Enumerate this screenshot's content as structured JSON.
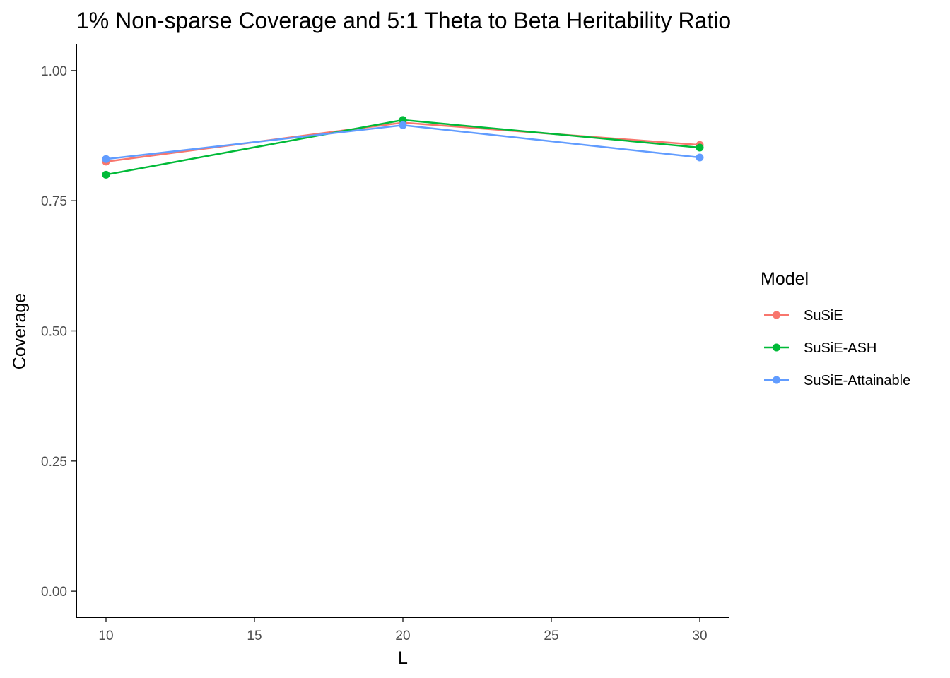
{
  "chart_data": {
    "type": "line",
    "title": "1% Non-sparse Coverage and 5:1 Theta to Beta Heritability Ratio",
    "xlabel": "L",
    "ylabel": "Coverage",
    "x": [
      10,
      20,
      30
    ],
    "xlim": [
      9,
      31
    ],
    "ylim": [
      -0.05,
      1.05
    ],
    "xticks": [
      10,
      15,
      20,
      25,
      30
    ],
    "yticks": [
      0.0,
      0.25,
      0.5,
      0.75,
      1.0
    ],
    "xtick_labels": [
      "10",
      "15",
      "20",
      "25",
      "30"
    ],
    "ytick_labels": [
      "0.00",
      "0.25",
      "0.50",
      "0.75",
      "1.00"
    ],
    "grid": false,
    "legend": {
      "title": "Model",
      "position": "right"
    },
    "series": [
      {
        "name": "SuSiE",
        "color": "#F8766D",
        "values": [
          0.825,
          0.9,
          0.857
        ]
      },
      {
        "name": "SuSiE-ASH",
        "color": "#00BA38",
        "values": [
          0.8,
          0.905,
          0.852
        ]
      },
      {
        "name": "SuSiE-Attainable",
        "color": "#619CFF",
        "values": [
          0.83,
          0.895,
          0.833
        ]
      }
    ]
  }
}
